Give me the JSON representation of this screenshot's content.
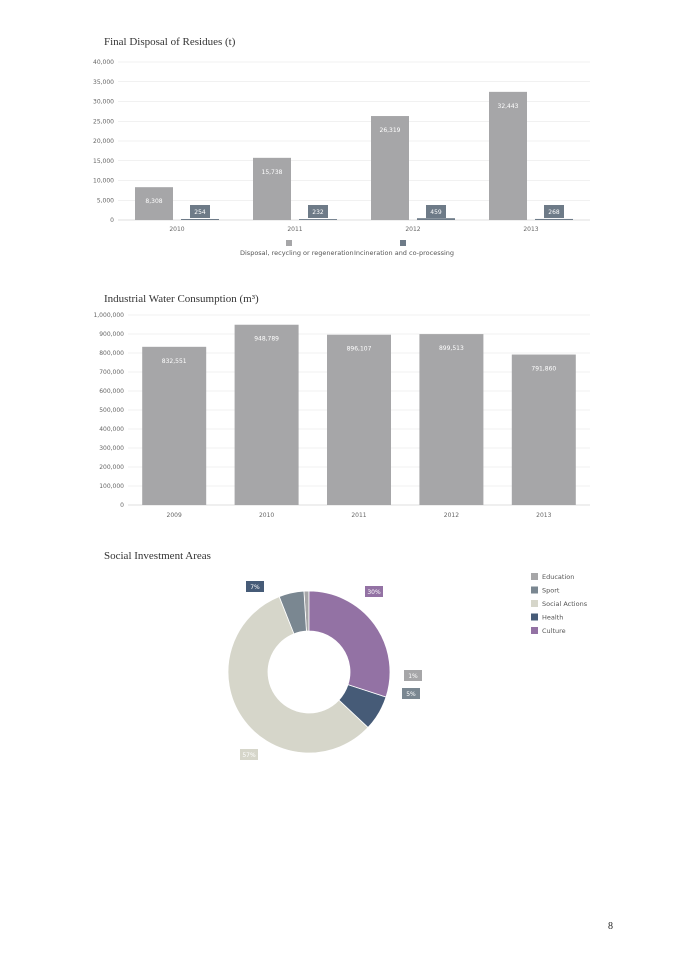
{
  "page": {
    "number": "8"
  },
  "chart_data": [
    {
      "type": "bar",
      "title": "Final Disposal of Residues (t)",
      "categories": [
        "2010",
        "2011",
        "2012",
        "2013"
      ],
      "series": [
        {
          "name": "Disposal, recycling or regeneration",
          "values": [
            8308,
            15738,
            26319,
            32443
          ],
          "labels": [
            "8,308",
            "15,738",
            "26,319",
            "32,443"
          ],
          "color": "#a6a6a8"
        },
        {
          "name": "Incineration and co-processing",
          "values": [
            254,
            232,
            459,
            268
          ],
          "labels": [
            "254",
            "232",
            "459",
            "268"
          ],
          "color": "#6e7b88"
        }
      ],
      "ylim": [
        0,
        40000
      ],
      "yticks": [
        0,
        5000,
        10000,
        15000,
        20000,
        25000,
        30000,
        35000,
        40000
      ],
      "ytick_labels": [
        "0",
        "5,000",
        "10,000",
        "15,000",
        "20,000",
        "25,000",
        "30,000",
        "35,000",
        "40,000"
      ],
      "grid": true,
      "legend": "bottom"
    },
    {
      "type": "bar",
      "title": "Industrial Water Consumption (m³)",
      "categories": [
        "2009",
        "2010",
        "2011",
        "2012",
        "2013"
      ],
      "series": [
        {
          "values": [
            832551,
            948789,
            896107,
            899513,
            791860
          ],
          "labels": [
            "832,551",
            "948,789",
            "896,107",
            "899,513",
            "791,860"
          ],
          "color": "#a6a6a8"
        }
      ],
      "ylim": [
        0,
        1000000
      ],
      "yticks": [
        0,
        100000,
        200000,
        300000,
        400000,
        500000,
        600000,
        700000,
        800000,
        900000,
        1000000
      ],
      "ytick_labels": [
        "0",
        "100,000",
        "200,000",
        "300,000",
        "400,000",
        "500,000",
        "600,000",
        "700,000",
        "800,000",
        "900,000",
        "1,000,000"
      ],
      "grid": true
    },
    {
      "type": "pie",
      "title": "Social Investment Areas",
      "donut": true,
      "slices": [
        {
          "name": "Education",
          "value": 1,
          "label": "1%",
          "color": "#a6a6a8"
        },
        {
          "name": "Sport",
          "value": 5,
          "label": "5%",
          "color": "#7a8791"
        },
        {
          "name": "Social Actions",
          "value": 57,
          "label": "57%",
          "color": "#d6d6ca"
        },
        {
          "name": "Health",
          "value": 7,
          "label": "7%",
          "color": "#465b77"
        },
        {
          "name": "Culture",
          "value": 30,
          "label": "30%",
          "color": "#9372a4"
        }
      ],
      "legend": "right"
    }
  ]
}
